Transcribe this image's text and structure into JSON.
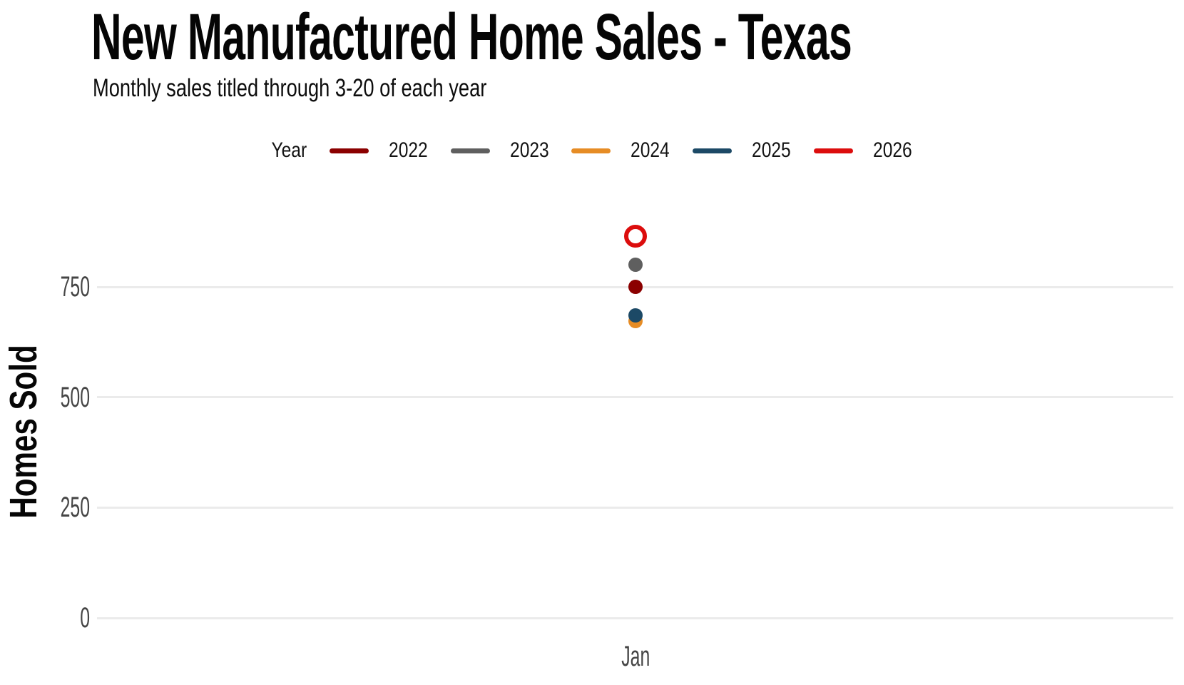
{
  "chart_data": {
    "type": "scatter",
    "title": "New Manufactured Home Sales - Texas",
    "subtitle": "Monthly sales titled through 3-20 of each year",
    "xlabel": "",
    "ylabel": "Homes Sold",
    "legend_title": "Year",
    "legend_position": "top",
    "x_categories": [
      "Jan"
    ],
    "series": [
      {
        "name": "2022",
        "color": "#8B0000",
        "marker": "circle-filled",
        "values": [
          750
        ]
      },
      {
        "name": "2023",
        "color": "#5F5F5F",
        "marker": "circle-filled",
        "values": [
          800
        ]
      },
      {
        "name": "2024",
        "color": "#E68C25",
        "marker": "circle-filled",
        "values": [
          673
        ]
      },
      {
        "name": "2025",
        "color": "#1C4966",
        "marker": "circle-filled",
        "values": [
          685
        ]
      },
      {
        "name": "2026",
        "color": "#DC0D0D",
        "marker": "circle-open",
        "values": [
          865
        ]
      }
    ],
    "yticks": [
      0,
      250,
      500,
      750
    ],
    "ylim": [
      0,
      1000
    ],
    "grid": "horizontal",
    "gridline_color": "#EBEBEB",
    "axis_text_color": "#454545",
    "background_color": "#FFFFFF"
  }
}
